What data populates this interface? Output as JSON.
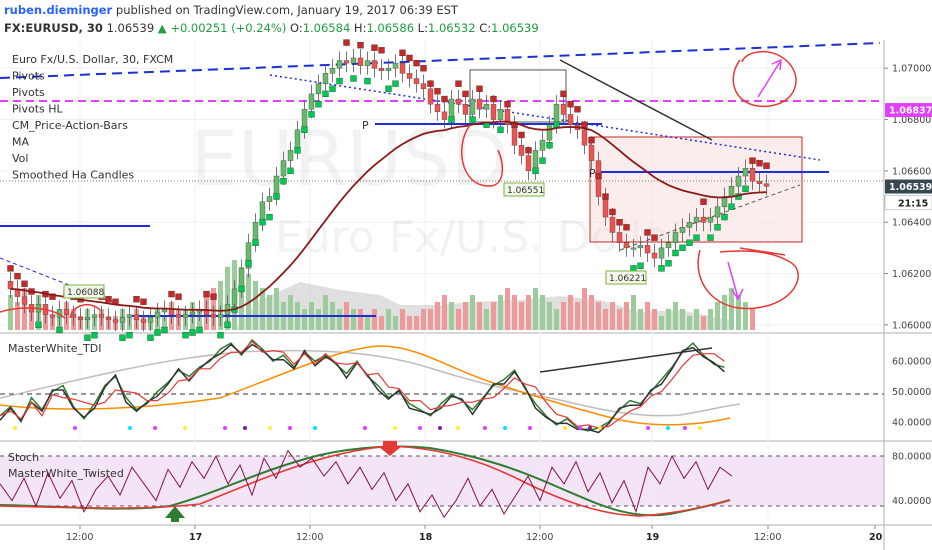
{
  "header": {
    "user": "ruben.dieminger",
    "published": "published on TradingView.com, January 19, 2017 06:39 EST",
    "symbol": "FX:EURUSD, 30",
    "last": "1.06539",
    "change": "+0.00251 (+0.24%)",
    "o_label": "O:",
    "o_value": "1.06584",
    "h_label": "H:",
    "h_value": "1.06586",
    "l_label": "L:",
    "l_value": "1.06532",
    "c_label": "C:",
    "c_value": "1.06539"
  },
  "studies": [
    "Euro Fx/U.S. Dollar, 30, FXCM",
    "Pivots",
    "Pivots",
    "Pivots HL",
    "CM_Price-Action-Bars",
    "MA",
    "Vol",
    "Smoothed Ha Candles"
  ],
  "watermark": [
    "EURUSD",
    "Euro Fx/U.S. Dollar"
  ],
  "annotations": {
    "pivot_p": "P",
    "low1": "1.06551",
    "low2": "1.06221",
    "low3": "1.06088"
  },
  "panes": {
    "tdi_title": "MasterWhite_TDI",
    "stoch_title": "Stoch",
    "twisted_title": "MasterWhite_Twisted"
  },
  "price_axis": {
    "ticks": [
      "1.07000",
      "1.06800",
      "1.06600",
      "1.06400",
      "1.06200",
      "1.06000"
    ],
    "badge_pink": "1.06837",
    "badge_last": "1.06539",
    "countdown": "21:15",
    "badge_pink_color": "#e040fb",
    "badge_last_color": "#37474f"
  },
  "tdi_axis": [
    "60.0000",
    "50.0000",
    "40.0000"
  ],
  "stoch_axis": [
    "80.0000",
    "40.0000"
  ],
  "time_axis": [
    "12:00",
    "17",
    "12:00",
    "18",
    "12:00",
    "19",
    "12:00",
    "20"
  ],
  "colors": {
    "bull": "#66bb6a",
    "bear": "#ef5350",
    "ha_up": "#00c853",
    "ha_down": "#c62828",
    "ma": "#8b1a1a",
    "pivot": "#1e2fd6",
    "pink": "#e040fb",
    "annot": "#e53935"
  },
  "chart_data": [
    {
      "type": "candlestick",
      "title": "Euro Fx/U.S. Dollar, 30, FXCM",
      "ylim": [
        1.0598,
        1.0711
      ],
      "close_path": [
        1.0614,
        1.0611,
        1.0608,
        1.0605,
        1.0608,
        1.0604,
        1.0603,
        1.0606,
        1.0604,
        1.0603,
        1.0602,
        1.0603,
        1.0604,
        1.0603,
        1.0602,
        1.0601,
        1.0603,
        1.0604,
        1.0602,
        1.0601,
        1.0603,
        1.0605,
        1.0606,
        1.0604,
        1.0603,
        1.0604,
        1.0605,
        1.0606,
        1.0604,
        1.0603,
        1.0604,
        1.0608,
        1.0614,
        1.0622,
        1.0632,
        1.064,
        1.0648,
        1.065,
        1.0658,
        1.0664,
        1.0668,
        1.0676,
        1.0684,
        1.069,
        1.0694,
        1.0698,
        1.07,
        1.0703,
        1.0702,
        1.0704,
        1.0701,
        1.0703,
        1.07,
        1.0699,
        1.07,
        1.0702,
        1.0698,
        1.0696,
        1.0694,
        1.0692,
        1.0686,
        1.0683,
        1.068,
        1.0688,
        1.0686,
        1.0682,
        1.0688,
        1.0684,
        1.0686,
        1.068,
        1.0684,
        1.0678,
        1.067,
        1.0666,
        1.066,
        1.0668,
        1.0672,
        1.0678,
        1.0686,
        1.0682,
        1.0678,
        1.0676,
        1.067,
        1.0664,
        1.065,
        1.0642,
        1.0636,
        1.0632,
        1.063,
        1.063,
        1.0631,
        1.0628,
        1.0626,
        1.063,
        1.0632,
        1.0636,
        1.0638,
        1.064,
        1.0642,
        1.064,
        1.0642,
        1.0646,
        1.065,
        1.0654,
        1.0658,
        1.0661,
        1.0656,
        1.0655,
        1.0654
      ],
      "last": 1.06539
    },
    {
      "type": "bar",
      "title": "Vol",
      "relative_values": [
        0.5,
        0.4,
        0.6,
        0.3,
        0.5,
        0.3,
        0.2,
        0.3,
        0.4,
        0.3,
        0.2,
        0.3,
        0.2,
        0.3,
        0.2,
        0.2,
        0.3,
        0.2,
        0.3,
        0.2,
        0.2,
        0.3,
        0.2,
        0.4,
        0.3,
        0.3,
        0.4,
        0.3,
        0.5,
        0.6,
        0.7,
        0.9,
        1.0,
        0.9,
        0.8,
        0.7,
        0.6,
        0.5,
        0.6,
        0.4,
        0.5,
        0.4,
        0.3,
        0.4,
        0.3,
        0.5,
        0.4,
        0.3,
        0.4,
        0.3,
        0.3,
        0.2,
        0.3,
        0.2,
        0.3,
        0.2,
        0.3,
        0.2,
        0.2,
        0.3,
        0.3,
        0.4,
        0.5,
        0.4,
        0.3,
        0.4,
        0.5,
        0.4,
        0.3,
        0.4,
        0.5,
        0.6,
        0.5,
        0.4,
        0.5,
        0.6,
        0.5,
        0.4,
        0.3,
        0.4,
        0.5,
        0.4,
        0.6,
        0.5,
        0.4,
        0.3,
        0.4,
        0.3,
        0.4,
        0.5,
        0.3,
        0.4,
        0.3,
        0.2,
        0.3,
        0.4,
        0.3,
        0.2,
        0.3,
        0.2,
        0.3,
        0.4,
        0.5,
        0.6,
        0.5,
        0.4,
        0.3
      ]
    },
    {
      "type": "line",
      "title": "MasterWhite_TDI",
      "ylim": [
        35,
        68
      ],
      "series": [
        {
          "values": [
            42,
            45,
            40,
            48,
            44,
            50,
            52,
            45,
            41,
            46,
            52,
            55,
            48,
            44,
            46,
            50,
            53,
            57,
            55,
            58,
            60,
            64,
            66,
            62,
            67,
            64,
            60,
            62,
            58,
            63,
            60,
            62,
            59,
            56,
            60,
            55,
            52,
            48,
            50,
            46,
            44,
            42,
            46,
            49,
            47,
            44,
            48,
            52,
            54,
            57,
            51,
            46,
            42,
            39,
            41,
            38,
            37,
            38,
            40,
            44,
            47,
            46,
            50,
            54,
            58,
            63,
            66,
            62,
            59,
            58
          ]
        },
        {
          "values": [
            44,
            44,
            45,
            46,
            46,
            47,
            48,
            49,
            49,
            50,
            51,
            52,
            52,
            53,
            54,
            55,
            56,
            57,
            58,
            59,
            60,
            61,
            61,
            61,
            62,
            62,
            62,
            61,
            60,
            60,
            59,
            58,
            57,
            56,
            55,
            54,
            53,
            52,
            51,
            50,
            49,
            48,
            48,
            47,
            47,
            47,
            47,
            48,
            48,
            48,
            48,
            47,
            47,
            46,
            45,
            44,
            43,
            43,
            42,
            42,
            42,
            43,
            44,
            46,
            48,
            50,
            52,
            54,
            55,
            56
          ]
        }
      ]
    },
    {
      "type": "line",
      "title": "MasterWhite_Twisted",
      "ylim": [
        18,
        90
      ],
      "series": [
        {
          "values": [
            55,
            40,
            60,
            35,
            65,
            42,
            58,
            30,
            50,
            62,
            45,
            70,
            55,
            40,
            68,
            52,
            75,
            60,
            80,
            55,
            72,
            45,
            78,
            60,
            85,
            70,
            78,
            62,
            75,
            55,
            70,
            50,
            65,
            40,
            55,
            30,
            45,
            25,
            40,
            60,
            35,
            50,
            28,
            45,
            62,
            40,
            70,
            55,
            75,
            48,
            65,
            38,
            58,
            30,
            70,
            55,
            80,
            60,
            75,
            50,
            70,
            62
          ]
        }
      ]
    }
  ]
}
